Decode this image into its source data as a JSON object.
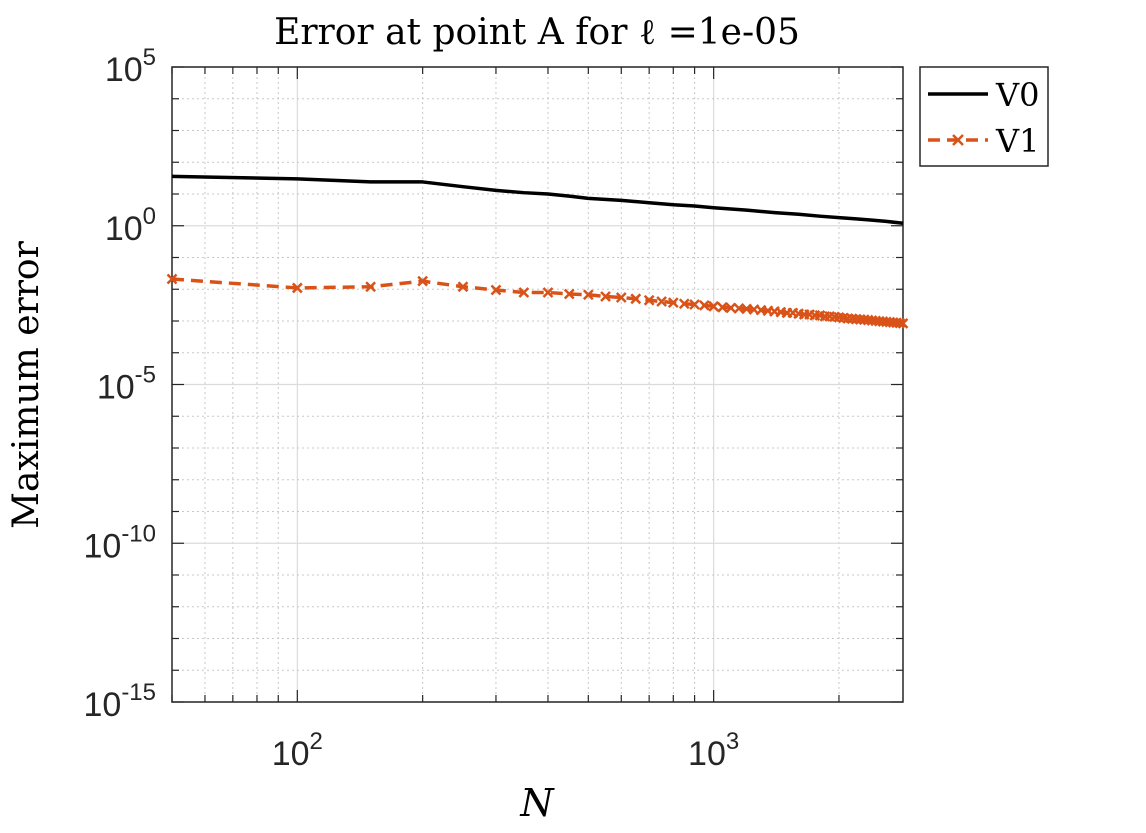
{
  "chart_data": {
    "type": "line",
    "title": "Error at point A for ℓ =1e-05",
    "xlabel": "N",
    "ylabel": "Maximum error",
    "xscale": "log",
    "yscale": "log",
    "xlim": [
      50,
      2850
    ],
    "ylim": [
      1e-15,
      100000
    ],
    "grid": "major and minor",
    "legend_position": "top-right, outside plot area",
    "x_ticks": [
      {
        "value": 100,
        "base": "10",
        "exp": "2"
      },
      {
        "value": 1000,
        "base": "10",
        "exp": "3"
      }
    ],
    "y_ticks": [
      {
        "value": 100000,
        "base": "10",
        "exp": "5"
      },
      {
        "value": 1,
        "base": "10",
        "exp": "0"
      },
      {
        "value": 1e-05,
        "base": "10",
        "exp": "-5"
      },
      {
        "value": 1e-10,
        "base": "10",
        "exp": "-10"
      },
      {
        "value": 1e-15,
        "base": "10",
        "exp": "-15"
      }
    ],
    "series": [
      {
        "name": "V0",
        "color": "#000000",
        "line_style": "solid",
        "marker": "none",
        "points": [
          [
            50,
            36
          ],
          [
            100,
            30
          ],
          [
            150,
            24
          ],
          [
            200,
            24
          ],
          [
            250,
            17
          ],
          [
            300,
            13
          ],
          [
            350,
            11
          ],
          [
            400,
            10
          ],
          [
            450,
            8.6
          ],
          [
            500,
            7.3
          ],
          [
            600,
            6.3
          ],
          [
            700,
            5.3
          ],
          [
            800,
            4.6
          ],
          [
            900,
            4.2
          ],
          [
            1000,
            3.7
          ],
          [
            1200,
            3.1
          ],
          [
            1400,
            2.6
          ],
          [
            1600,
            2.3
          ],
          [
            1800,
            2.0
          ],
          [
            2000,
            1.8
          ],
          [
            2200,
            1.65
          ],
          [
            2400,
            1.5
          ],
          [
            2600,
            1.37
          ],
          [
            2850,
            1.2
          ]
        ]
      },
      {
        "name": "V1",
        "color": "#D95319",
        "line_style": "dashed",
        "marker": "x",
        "points": [
          [
            50,
            0.021
          ],
          [
            100,
            0.011
          ],
          [
            150,
            0.012
          ],
          [
            200,
            0.018
          ],
          [
            250,
            0.012
          ],
          [
            300,
            0.0095
          ],
          [
            350,
            0.0079
          ],
          [
            400,
            0.0079
          ],
          [
            450,
            0.0071
          ],
          [
            500,
            0.0067
          ],
          [
            550,
            0.0059
          ],
          [
            600,
            0.0055
          ],
          [
            650,
            0.005
          ],
          [
            700,
            0.0045
          ],
          [
            750,
            0.0041
          ],
          [
            800,
            0.0038
          ],
          [
            850,
            0.0035
          ],
          [
            900,
            0.0033
          ],
          [
            950,
            0.0031
          ],
          [
            1000,
            0.0029
          ],
          [
            1050,
            0.0027
          ],
          [
            1100,
            0.0026
          ],
          [
            1150,
            0.0025
          ],
          [
            1200,
            0.0024
          ],
          [
            1250,
            0.0023
          ],
          [
            1300,
            0.0022
          ],
          [
            1350,
            0.0021
          ],
          [
            1400,
            0.002
          ],
          [
            1450,
            0.0019
          ],
          [
            1500,
            0.0018
          ],
          [
            1550,
            0.0018
          ],
          [
            1600,
            0.0017
          ],
          [
            1650,
            0.0016
          ],
          [
            1700,
            0.0016
          ],
          [
            1750,
            0.0015
          ],
          [
            1800,
            0.0015
          ],
          [
            1850,
            0.0014
          ],
          [
            1900,
            0.0014
          ],
          [
            1950,
            0.00135
          ],
          [
            2000,
            0.0013
          ],
          [
            2050,
            0.00125
          ],
          [
            2100,
            0.0012
          ],
          [
            2150,
            0.00118
          ],
          [
            2200,
            0.00115
          ],
          [
            2250,
            0.00112
          ],
          [
            2300,
            0.0011
          ],
          [
            2350,
            0.00107
          ],
          [
            2400,
            0.00104
          ],
          [
            2450,
            0.00101
          ],
          [
            2500,
            0.00098
          ],
          [
            2550,
            0.00096
          ],
          [
            2600,
            0.00094
          ],
          [
            2650,
            0.00092
          ],
          [
            2700,
            0.0009
          ],
          [
            2750,
            0.00088
          ],
          [
            2800,
            0.00086
          ],
          [
            2850,
            0.00084
          ]
        ]
      }
    ]
  }
}
